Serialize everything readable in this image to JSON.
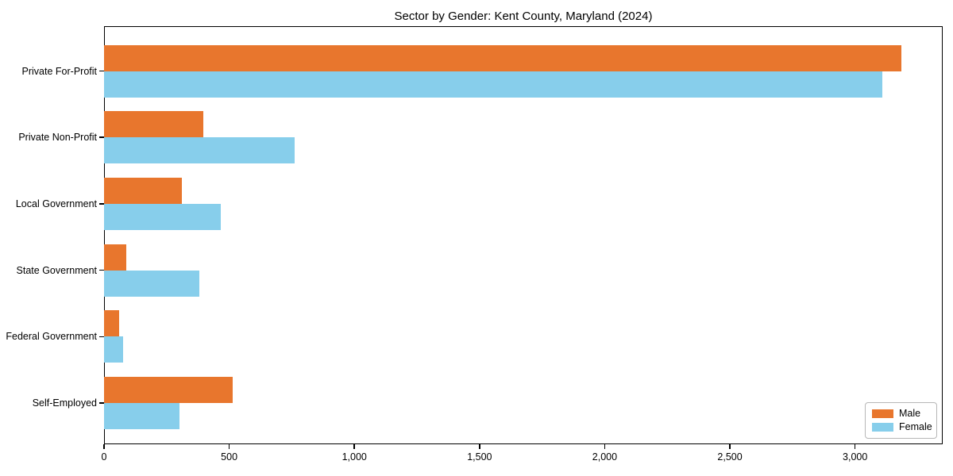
{
  "figure": {
    "title": "Sector by Gender: Kent County, Maryland (2024)"
  },
  "chart_data": {
    "type": "bar",
    "orientation": "horizontal",
    "title": "Sector by Gender: Kent County, Maryland (2024)",
    "categories": [
      "Private For-Profit",
      "Private Non-Profit",
      "Local Government",
      "State Government",
      "Federal Government",
      "Self-Employed"
    ],
    "series": [
      {
        "name": "Male",
        "color": "#E8762D",
        "values": [
          3185,
          395,
          310,
          90,
          60,
          515
        ]
      },
      {
        "name": "Female",
        "color": "#87CEEB",
        "values": [
          3110,
          760,
          465,
          380,
          75,
          300
        ]
      }
    ],
    "xlabel": "",
    "ylabel": "",
    "xlim": [
      0,
      3350
    ],
    "xticks": [
      0,
      500,
      1000,
      1500,
      2000,
      2500,
      3000
    ],
    "xtick_labels": [
      "0",
      "500",
      "1,000",
      "1,500",
      "2,000",
      "2,500",
      "3,000"
    ],
    "grid": false,
    "legend": {
      "position": "lower right",
      "entries": [
        "Male",
        "Female"
      ]
    },
    "frame": "full-box"
  }
}
